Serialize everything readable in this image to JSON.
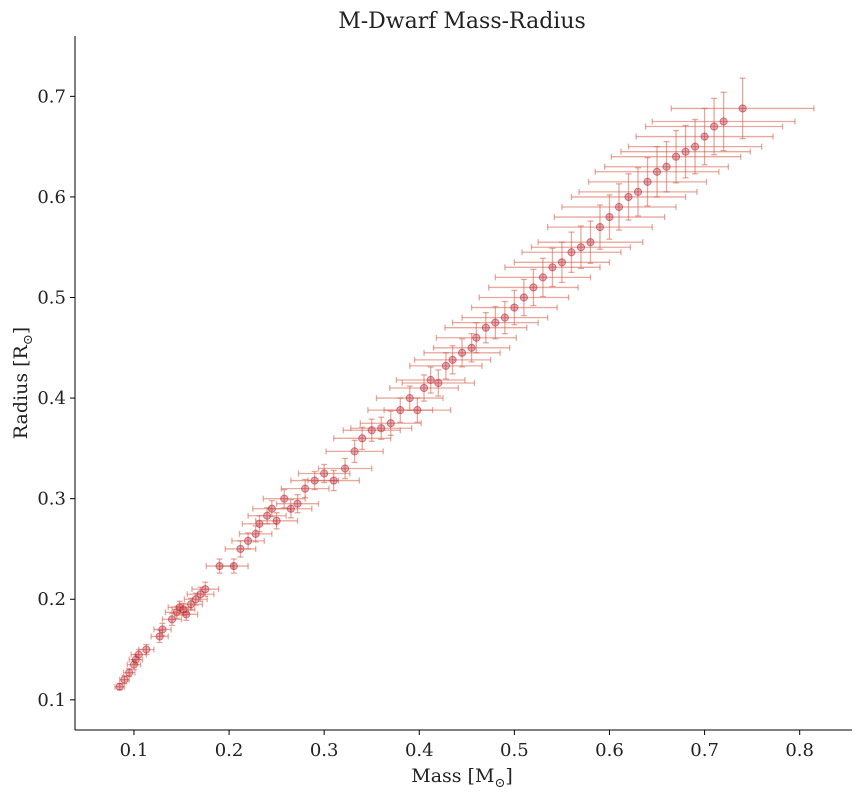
{
  "chart_data": {
    "type": "scatter",
    "title": "M-Dwarf Mass-Radius",
    "xlabel": "Mass [M",
    "ylabel": "Radius [R",
    "label_suffix": "]",
    "sun_symbol": "⊙",
    "xlim": [
      0.038,
      0.855
    ],
    "ylim": [
      0.07,
      0.76
    ],
    "xticks": [
      0.1,
      0.2,
      0.3,
      0.4,
      0.5,
      0.6,
      0.7,
      0.8
    ],
    "xtick_labels": [
      "0.1",
      "0.2",
      "0.3",
      "0.4",
      "0.5",
      "0.6",
      "0.7",
      "0.8"
    ],
    "yticks": [
      0.1,
      0.2,
      0.3,
      0.4,
      0.5,
      0.6,
      0.7
    ],
    "ytick_labels": [
      "0.1",
      "0.2",
      "0.3",
      "0.4",
      "0.5",
      "0.6",
      "0.7"
    ],
    "grid": false,
    "marker_color": "#b2182b",
    "errorbar_color": "#d6604d",
    "series": [
      {
        "points": [
          [
            0.085,
            0.113,
            0.005,
            0.003
          ],
          [
            0.09,
            0.12,
            0.005,
            0.004
          ],
          [
            0.095,
            0.127,
            0.006,
            0.004
          ],
          [
            0.1,
            0.135,
            0.007,
            0.005
          ],
          [
            0.102,
            0.14,
            0.007,
            0.005
          ],
          [
            0.105,
            0.145,
            0.008,
            0.005
          ],
          [
            0.113,
            0.15,
            0.008,
            0.005
          ],
          [
            0.127,
            0.163,
            0.009,
            0.006
          ],
          [
            0.13,
            0.17,
            0.009,
            0.006
          ],
          [
            0.14,
            0.18,
            0.01,
            0.006
          ],
          [
            0.145,
            0.187,
            0.012,
            0.006
          ],
          [
            0.148,
            0.192,
            0.012,
            0.006
          ],
          [
            0.152,
            0.19,
            0.012,
            0.006
          ],
          [
            0.155,
            0.185,
            0.012,
            0.006
          ],
          [
            0.16,
            0.195,
            0.012,
            0.006
          ],
          [
            0.165,
            0.2,
            0.012,
            0.006
          ],
          [
            0.17,
            0.205,
            0.014,
            0.007
          ],
          [
            0.175,
            0.21,
            0.014,
            0.007
          ],
          [
            0.19,
            0.233,
            0.014,
            0.007
          ],
          [
            0.205,
            0.233,
            0.015,
            0.007
          ],
          [
            0.212,
            0.25,
            0.016,
            0.008
          ],
          [
            0.22,
            0.258,
            0.017,
            0.008
          ],
          [
            0.228,
            0.265,
            0.017,
            0.008
          ],
          [
            0.232,
            0.275,
            0.018,
            0.008
          ],
          [
            0.24,
            0.283,
            0.02,
            0.008
          ],
          [
            0.245,
            0.29,
            0.02,
            0.008
          ],
          [
            0.25,
            0.278,
            0.022,
            0.008
          ],
          [
            0.258,
            0.3,
            0.022,
            0.009
          ],
          [
            0.265,
            0.29,
            0.022,
            0.009
          ],
          [
            0.272,
            0.295,
            0.022,
            0.009
          ],
          [
            0.28,
            0.31,
            0.025,
            0.009
          ],
          [
            0.29,
            0.318,
            0.025,
            0.009
          ],
          [
            0.3,
            0.325,
            0.027,
            0.009
          ],
          [
            0.31,
            0.318,
            0.027,
            0.01
          ],
          [
            0.322,
            0.33,
            0.028,
            0.01
          ],
          [
            0.332,
            0.347,
            0.03,
            0.011
          ],
          [
            0.34,
            0.36,
            0.03,
            0.011
          ],
          [
            0.35,
            0.368,
            0.03,
            0.011
          ],
          [
            0.36,
            0.37,
            0.032,
            0.011
          ],
          [
            0.37,
            0.375,
            0.032,
            0.012
          ],
          [
            0.38,
            0.388,
            0.034,
            0.012
          ],
          [
            0.39,
            0.4,
            0.035,
            0.012
          ],
          [
            0.398,
            0.388,
            0.035,
            0.012
          ],
          [
            0.405,
            0.41,
            0.036,
            0.013
          ],
          [
            0.412,
            0.418,
            0.036,
            0.013
          ],
          [
            0.42,
            0.415,
            0.038,
            0.013
          ],
          [
            0.428,
            0.432,
            0.038,
            0.013
          ],
          [
            0.435,
            0.438,
            0.04,
            0.014
          ],
          [
            0.445,
            0.445,
            0.04,
            0.014
          ],
          [
            0.455,
            0.45,
            0.04,
            0.014
          ],
          [
            0.46,
            0.46,
            0.042,
            0.015
          ],
          [
            0.47,
            0.47,
            0.043,
            0.015
          ],
          [
            0.48,
            0.475,
            0.045,
            0.016
          ],
          [
            0.49,
            0.48,
            0.045,
            0.016
          ],
          [
            0.5,
            0.49,
            0.045,
            0.017
          ],
          [
            0.51,
            0.5,
            0.047,
            0.018
          ],
          [
            0.52,
            0.51,
            0.047,
            0.018
          ],
          [
            0.53,
            0.52,
            0.05,
            0.019
          ],
          [
            0.54,
            0.53,
            0.05,
            0.019
          ],
          [
            0.55,
            0.535,
            0.05,
            0.02
          ],
          [
            0.56,
            0.545,
            0.052,
            0.02
          ],
          [
            0.57,
            0.55,
            0.052,
            0.021
          ],
          [
            0.58,
            0.555,
            0.055,
            0.021
          ],
          [
            0.59,
            0.57,
            0.055,
            0.022
          ],
          [
            0.6,
            0.58,
            0.058,
            0.022
          ],
          [
            0.61,
            0.59,
            0.06,
            0.023
          ],
          [
            0.62,
            0.6,
            0.06,
            0.023
          ],
          [
            0.63,
            0.605,
            0.062,
            0.024
          ],
          [
            0.64,
            0.615,
            0.062,
            0.024
          ],
          [
            0.65,
            0.625,
            0.065,
            0.025
          ],
          [
            0.66,
            0.63,
            0.065,
            0.025
          ],
          [
            0.67,
            0.64,
            0.068,
            0.026
          ],
          [
            0.68,
            0.645,
            0.068,
            0.026
          ],
          [
            0.69,
            0.65,
            0.07,
            0.027
          ],
          [
            0.7,
            0.66,
            0.072,
            0.028
          ],
          [
            0.71,
            0.67,
            0.072,
            0.028
          ],
          [
            0.72,
            0.675,
            0.075,
            0.029
          ],
          [
            0.74,
            0.688,
            0.075,
            0.03
          ]
        ]
      }
    ]
  }
}
